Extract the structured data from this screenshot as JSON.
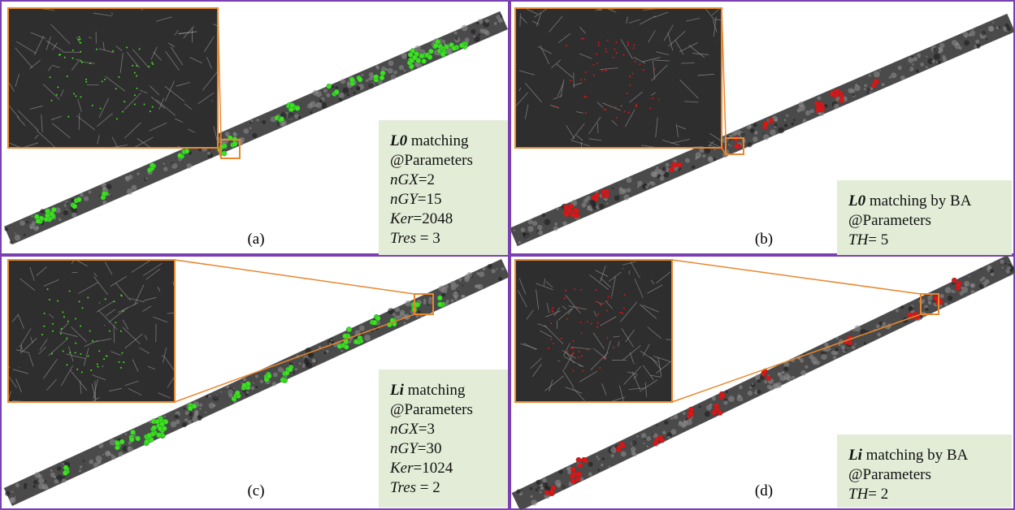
{
  "panels": [
    {
      "label": "(a)",
      "title_bold": "L0",
      "title_rest": " matching",
      "heading": "@Parameters",
      "params": [
        {
          "name": "nGX",
          "text": "=2"
        },
        {
          "name": "nGY",
          "text": "=15"
        },
        {
          "name": "Ker",
          "text": "=2048"
        },
        {
          "name": "Tres",
          "text": " = 3"
        }
      ]
    },
    {
      "label": "(b)",
      "title_bold": "L0",
      "title_rest": " matching by BA",
      "heading": "@Parameters",
      "params": [
        {
          "name": "TH",
          "text": "= 5"
        }
      ]
    },
    {
      "label": "(c)",
      "title_bold": "Li",
      "title_rest": " matching",
      "heading": "@Parameters",
      "params": [
        {
          "name": "nGX",
          "text": "=3"
        },
        {
          "name": "nGY",
          "text": "=30"
        },
        {
          "name": "Ker",
          "text": "=1024"
        },
        {
          "name": "Tres",
          "text": " = 2"
        }
      ]
    },
    {
      "label": "(d)",
      "title_bold": "Li",
      "title_rest": " matching by BA",
      "heading": "@Parameters",
      "params": [
        {
          "name": "TH",
          "text": "= 2"
        }
      ]
    }
  ]
}
